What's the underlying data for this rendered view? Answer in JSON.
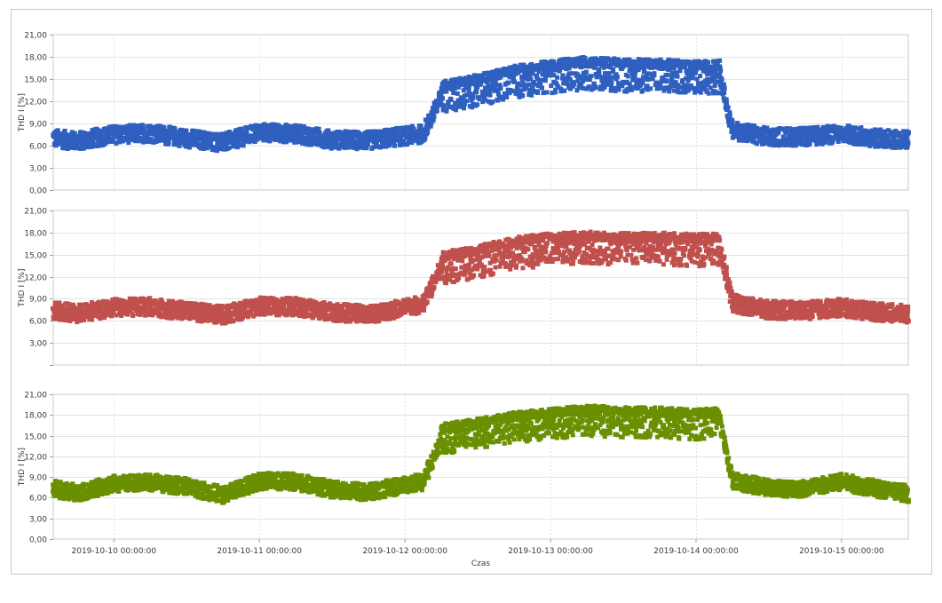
{
  "chart_data": [
    {
      "type": "scatter",
      "title": "",
      "ylabel": "THD I [%]",
      "xlabel": "",
      "ylim": [
        0,
        21
      ],
      "ytick_labels": [
        "0,00",
        "3,00",
        "6,00",
        "9,00",
        "12,00",
        "15,00",
        "18,00",
        "21,00"
      ],
      "color": "#2f5fbf",
      "xlim": [
        "2019-10-09 14:00:00",
        "2019-10-15 11:00:00"
      ],
      "series": [
        {
          "values": [
            [
              "2019-10-09 14:00:00",
              7.0
            ],
            [
              "2019-10-09 18:00:00",
              6.6
            ],
            [
              "2019-10-10 00:00:00",
              7.5
            ],
            [
              "2019-10-10 06:00:00",
              7.7
            ],
            [
              "2019-10-10 12:00:00",
              7.0
            ],
            [
              "2019-10-10 18:00:00",
              6.4
            ],
            [
              "2019-10-11 00:00:00",
              7.8
            ],
            [
              "2019-10-11 06:00:00",
              7.6
            ],
            [
              "2019-10-11 12:00:00",
              6.8
            ],
            [
              "2019-10-11 18:00:00",
              6.7
            ],
            [
              "2019-10-12 00:00:00",
              7.3
            ],
            [
              "2019-10-12 03:00:00",
              7.6
            ],
            [
              "2019-10-12 06:00:00",
              12.5
            ],
            [
              "2019-10-12 12:00:00",
              13.4
            ],
            [
              "2019-10-12 18:00:00",
              14.6
            ],
            [
              "2019-10-13 00:00:00",
              15.3
            ],
            [
              "2019-10-13 06:00:00",
              15.8
            ],
            [
              "2019-10-13 12:00:00",
              15.5
            ],
            [
              "2019-10-13 18:00:00",
              15.5
            ],
            [
              "2019-10-14 00:00:00",
              15.2
            ],
            [
              "2019-10-14 04:00:00",
              15.3
            ],
            [
              "2019-10-14 06:00:00",
              8.0
            ],
            [
              "2019-10-14 12:00:00",
              7.2
            ],
            [
              "2019-10-14 18:00:00",
              7.2
            ],
            [
              "2019-10-15 00:00:00",
              7.6
            ],
            [
              "2019-10-15 06:00:00",
              7.0
            ],
            [
              "2019-10-15 11:00:00",
              6.8
            ]
          ]
        }
      ]
    },
    {
      "type": "scatter",
      "title": "",
      "ylabel": "THD I [%]",
      "xlabel": "",
      "ylim": [
        0,
        21
      ],
      "ytick_labels": [
        "",
        "3,00",
        "6,00",
        "9,00",
        "12,00",
        "15,00",
        "18,00",
        "21,00"
      ],
      "color": "#c0504d",
      "xlim": [
        "2019-10-09 14:00:00",
        "2019-10-15 11:00:00"
      ],
      "series": [
        {
          "values": [
            [
              "2019-10-09 14:00:00",
              7.4
            ],
            [
              "2019-10-09 18:00:00",
              7.0
            ],
            [
              "2019-10-10 00:00:00",
              7.8
            ],
            [
              "2019-10-10 06:00:00",
              7.9
            ],
            [
              "2019-10-10 12:00:00",
              7.3
            ],
            [
              "2019-10-10 18:00:00",
              6.8
            ],
            [
              "2019-10-11 00:00:00",
              8.0
            ],
            [
              "2019-10-11 06:00:00",
              7.9
            ],
            [
              "2019-10-11 12:00:00",
              7.2
            ],
            [
              "2019-10-11 18:00:00",
              6.9
            ],
            [
              "2019-10-12 00:00:00",
              7.8
            ],
            [
              "2019-10-12 03:00:00",
              8.2
            ],
            [
              "2019-10-12 06:00:00",
              13.2
            ],
            [
              "2019-10-12 12:00:00",
              14.0
            ],
            [
              "2019-10-12 18:00:00",
              15.2
            ],
            [
              "2019-10-13 00:00:00",
              15.7
            ],
            [
              "2019-10-13 06:00:00",
              16.0
            ],
            [
              "2019-10-13 12:00:00",
              15.8
            ],
            [
              "2019-10-13 18:00:00",
              15.8
            ],
            [
              "2019-10-14 00:00:00",
              15.6
            ],
            [
              "2019-10-14 04:00:00",
              15.7
            ],
            [
              "2019-10-14 06:00:00",
              8.4
            ],
            [
              "2019-10-14 12:00:00",
              7.5
            ],
            [
              "2019-10-14 18:00:00",
              7.4
            ],
            [
              "2019-10-15 00:00:00",
              7.8
            ],
            [
              "2019-10-15 06:00:00",
              7.2
            ],
            [
              "2019-10-15 11:00:00",
              6.9
            ]
          ]
        }
      ]
    },
    {
      "type": "scatter",
      "title": "",
      "ylabel": "THD I [%]",
      "xlabel": "Czas",
      "ylim": [
        0,
        21
      ],
      "ytick_labels": [
        "0,00",
        "3,00",
        "6,00",
        "9,00",
        "12,00",
        "15,00",
        "18,00",
        "21,00"
      ],
      "xtick_labels": [
        "2019-10-10 00:00:00",
        "2019-10-11 00:00:00",
        "2019-10-12 00:00:00",
        "2019-10-13 00:00:00",
        "2019-10-14 00:00:00",
        "2019-10-15 00:00:00"
      ],
      "color": "#6a8f00",
      "xlim": [
        "2019-10-09 14:00:00",
        "2019-10-15 11:00:00"
      ],
      "series": [
        {
          "values": [
            [
              "2019-10-09 14:00:00",
              7.3
            ],
            [
              "2019-10-09 18:00:00",
              6.7
            ],
            [
              "2019-10-10 00:00:00",
              8.0
            ],
            [
              "2019-10-10 06:00:00",
              8.2
            ],
            [
              "2019-10-10 12:00:00",
              7.6
            ],
            [
              "2019-10-10 18:00:00",
              6.4
            ],
            [
              "2019-10-11 00:00:00",
              8.4
            ],
            [
              "2019-10-11 06:00:00",
              8.3
            ],
            [
              "2019-10-11 12:00:00",
              7.2
            ],
            [
              "2019-10-11 18:00:00",
              6.8
            ],
            [
              "2019-10-12 00:00:00",
              7.9
            ],
            [
              "2019-10-12 03:00:00",
              8.3
            ],
            [
              "2019-10-12 06:00:00",
              14.5
            ],
            [
              "2019-10-12 12:00:00",
              15.3
            ],
            [
              "2019-10-12 18:00:00",
              16.2
            ],
            [
              "2019-10-13 00:00:00",
              16.7
            ],
            [
              "2019-10-13 06:00:00",
              17.2
            ],
            [
              "2019-10-13 12:00:00",
              16.9
            ],
            [
              "2019-10-13 18:00:00",
              16.9
            ],
            [
              "2019-10-14 00:00:00",
              16.6
            ],
            [
              "2019-10-14 04:00:00",
              16.8
            ],
            [
              "2019-10-14 06:00:00",
              8.5
            ],
            [
              "2019-10-14 12:00:00",
              7.4
            ],
            [
              "2019-10-14 18:00:00",
              7.3
            ],
            [
              "2019-10-15 00:00:00",
              8.3
            ],
            [
              "2019-10-15 06:00:00",
              7.3
            ],
            [
              "2019-10-15 11:00:00",
              6.6
            ]
          ]
        }
      ]
    }
  ]
}
